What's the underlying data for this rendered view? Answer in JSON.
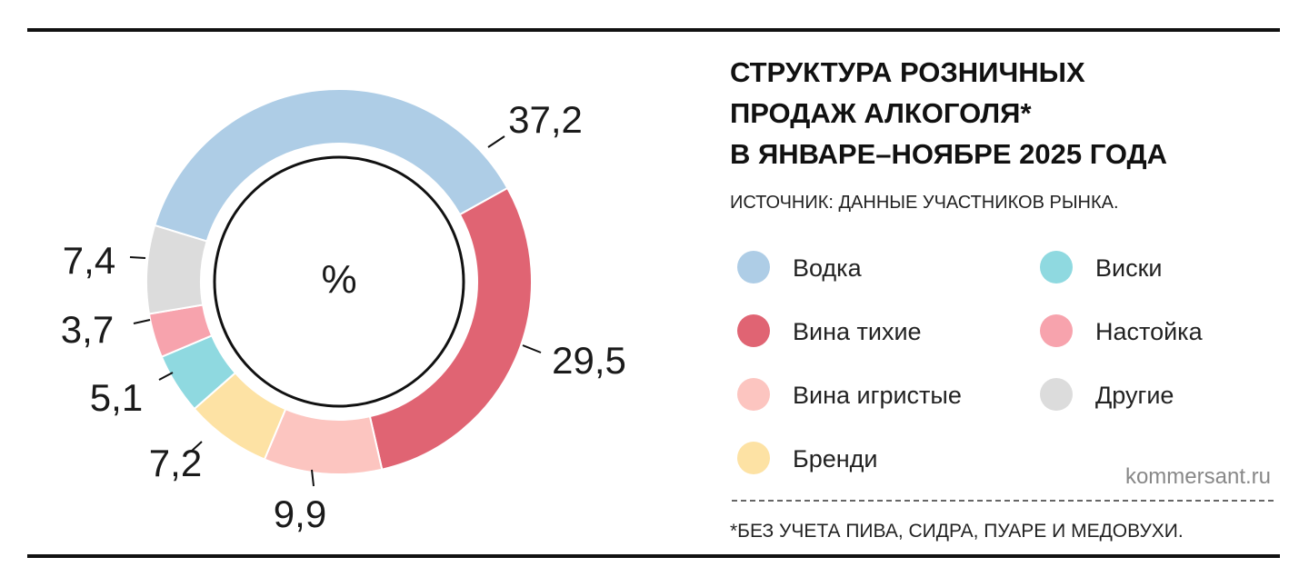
{
  "chart_data": {
    "type": "pie",
    "title": [
      "СТРУКТУРА РОЗНИЧНЫХ",
      "ПРОДАЖ АЛКОГОЛЯ*",
      "В ЯНВАРЕ–НОЯБРЕ 2025 ГОДА"
    ],
    "subtitle": "ИСТОЧНИК: ДАННЫЕ УЧАСТНИКОВ РЫНКА.",
    "center_label": "%",
    "categories": [
      "Водка",
      "Вина тихие",
      "Вина игристые",
      "Бренди",
      "Виски",
      "Настойка",
      "Другие"
    ],
    "values": [
      37.2,
      29.5,
      9.9,
      7.2,
      5.1,
      3.7,
      7.4
    ],
    "value_labels": [
      "37,2",
      "29,5",
      "9,9",
      "7,2",
      "5,1",
      "3,7",
      "7,4"
    ],
    "colors": [
      "#aecde6",
      "#e06473",
      "#fcc5c0",
      "#fde2a4",
      "#8fd9e0",
      "#f7a3ad",
      "#dcdcdc"
    ],
    "watermark": "kommersant.ru",
    "footnote": "*БЕЗ УЧЕТА ПИВА, СИДРА, ПУАРЕ И МЕДОВУХИ."
  }
}
